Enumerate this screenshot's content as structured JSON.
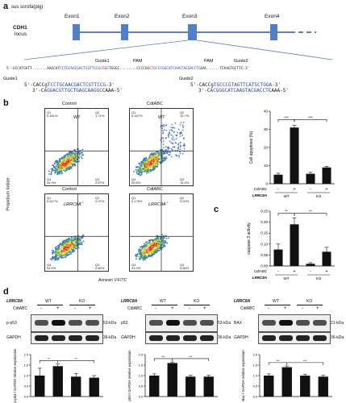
{
  "panels": {
    "a": "a",
    "b": "b",
    "c": "c",
    "d": "d"
  },
  "locus": {
    "species": "sus scrofa(pig)",
    "gene": "CDH1",
    "locus_word": "locus",
    "exons": [
      "Exon1",
      "Exon2",
      "Exon3",
      "Exon4"
    ],
    "guide1": "Guide1",
    "guide2": "Guide2",
    "pam": "PAM",
    "seq_start": "5'-GCCATGATT.......AAGCATCCTGCAACGACTCGTTCCGCGGCTGGGC........CCCCGGCTGCCCGGCATCAAGTACGACCTGGAC......TCAAGTGCTTC-3'",
    "seq_parts": {
      "p1": "5'-GCCATGATT.......AAGCAT",
      "p2": "CCTGCAACGACTCGTTCCG",
      "p3": "CGG",
      "p4": "CTGGGC........CCCCGG",
      "p5": "CTG",
      "p6": "CCCGGCATCAAGTACGACCTG",
      "p7": "GAC......TCAAGTGCTTC-3'"
    },
    "guide1_oligo_top_pre": "5'-CACCg",
    "guide1_oligo_top_seq": "TCCTGCAACGACTCGTTCCG",
    "guide1_oligo_top_post": "-3'",
    "guide1_oligo_bot_pre": "3'-C",
    "guide1_oligo_bot_seq": "AGGACGTTGCTGAGCAAGGC",
    "guide1_oligo_bot_post": "CAAA-5'",
    "guide2_oligo_top_pre": "5'-CACCg",
    "guide2_oligo_top_seq": "TGCCCGTAGTTCATGCTGGA",
    "guide2_oligo_top_post": "-3'",
    "guide2_oligo_bot_pre": "3'-C",
    "guide2_oligo_bot_seq": "ACGGGCATCAAGTACGACCT",
    "guide2_oligo_bot_post": "CAAA-5'"
  },
  "flow": {
    "ylabel": "Propidium Iodide",
    "xlabel": "Annexin V-FITC",
    "plots": [
      {
        "col": "Control",
        "tag": "WT",
        "q1": "Q1",
        "q1v": "0.451%",
        "q2": "Q2",
        "q2v": "1.71%",
        "q3": "Q3",
        "q3v": "2.87%",
        "q4": "Q4",
        "q4v": "94.9%"
      },
      {
        "col": "CdtABC",
        "tag": "WT",
        "q1": "Q1",
        "q1v": "0.347%",
        "q2": "Q2",
        "q2v": "15.7%",
        "q3": "Q3",
        "q3v": "14.4%",
        "q4": "Q4",
        "q4v": "69.6%"
      },
      {
        "col": "Control",
        "tag": "LRRC8A",
        "sup": "-/-",
        "q1": "Q1",
        "q1v": "0.617%",
        "q2": "Q2",
        "q2v": "2.07%",
        "q3": "Q3",
        "q3v": "2.80%",
        "q4": "Q4",
        "q4v": "94.5%"
      },
      {
        "col": "CdtABC",
        "tag": "LRRC8A",
        "sup": "-/-",
        "q1": "Q1",
        "q1v": "0.176%",
        "q2": "Q2",
        "q2v": "3.02%",
        "q3": "Q3",
        "q3v": "5.85%",
        "q4": "Q4",
        "q4v": "91.0%"
      }
    ]
  },
  "chart_data": [
    {
      "type": "bar",
      "panel": "b",
      "ylabel": "Cell apoptosis (%)",
      "ylim": [
        0,
        40
      ],
      "yticks": [
        "0",
        "10",
        "20",
        "30",
        "40"
      ],
      "cdtabc_label": "CdtABC",
      "cdtabc": [
        "-",
        "+",
        "-",
        "+"
      ],
      "group_label": "LRRC8A",
      "groups": [
        "WT",
        "KO"
      ],
      "values": [
        5,
        31,
        5.5,
        9
      ],
      "errors": [
        0.8,
        1.2,
        0.8,
        0.6
      ],
      "sig": [
        "***",
        "***"
      ]
    },
    {
      "type": "bar",
      "panel": "c",
      "ylabel": "caspase 3 activity",
      "ylim": [
        0,
        0.25
      ],
      "yticks": [
        "0.00",
        "0.05",
        "0.10",
        "0.15",
        "0.20",
        "0.25"
      ],
      "cdtabc_label": "CdtABC",
      "cdtabc": [
        "-",
        "+",
        "-",
        "+"
      ],
      "group_label": "LRRC8A",
      "groups": [
        "WT",
        "KO"
      ],
      "values": [
        0.075,
        0.19,
        0.01,
        0.065
      ],
      "errors": [
        0.025,
        0.03,
        0.005,
        0.02
      ],
      "sig": [
        "**",
        "**"
      ]
    },
    {
      "type": "bar",
      "panel": "d1",
      "ylabel": "p-p53 / GAPDH relative expression",
      "ylim": [
        0,
        2.0
      ],
      "yticks": [
        "0.0",
        "0.5",
        "1.0",
        "1.5",
        "2.0"
      ],
      "values": [
        1.0,
        1.45,
        0.95,
        0.9
      ],
      "errors": [
        0.35,
        0.1,
        0.15,
        0.1
      ],
      "sig": [
        "**",
        "**"
      ]
    },
    {
      "type": "bar",
      "panel": "d2",
      "ylabel": "p53 / GAPDH relative expression",
      "ylim": [
        0,
        2.0
      ],
      "yticks": [
        "0.0",
        "0.5",
        "1.0",
        "1.5",
        "2.0"
      ],
      "values": [
        1.0,
        1.6,
        0.95,
        0.95
      ],
      "errors": [
        0.08,
        0.05,
        0.06,
        0.06
      ],
      "sig": [
        "***",
        "***"
      ]
    },
    {
      "type": "bar",
      "panel": "d3",
      "ylabel": "Bax / GAPDH relative expression",
      "ylim": [
        0,
        2.0
      ],
      "yticks": [
        "0.0",
        "0.5",
        "1.0",
        "1.5",
        "2.0"
      ],
      "values": [
        1.0,
        1.4,
        1.0,
        0.95
      ],
      "errors": [
        0.08,
        0.06,
        0.07,
        0.06
      ],
      "sig": [
        "***",
        "***"
      ]
    }
  ],
  "blots": [
    {
      "gene": "LRRC8A",
      "wt": "WT",
      "ko": "KO",
      "cdt": "CdtABC",
      "signs": [
        "-",
        "+",
        "-",
        "+"
      ],
      "target": "p-p53",
      "target_kda": "53-kDa",
      "ctrl": "GAPDH",
      "ctrl_kda": "36-kDa"
    },
    {
      "gene": "LRRC8A",
      "wt": "WT",
      "ko": "KO",
      "cdt": "CdtABC",
      "signs": [
        "-",
        "+",
        "-",
        "+"
      ],
      "target": "p53",
      "target_kda": "53-kDa",
      "ctrl": "GAPDH",
      "ctrl_kda": "36-kDa"
    },
    {
      "gene": "LRRC8A",
      "wt": "WT",
      "ko": "KO",
      "cdt": "CdtABC",
      "signs": [
        "-",
        "+",
        "-",
        "+"
      ],
      "target": "BAX",
      "target_kda": "21-kDa",
      "ctrl": "GAPDH",
      "ctrl_kda": "36-kDa"
    }
  ]
}
